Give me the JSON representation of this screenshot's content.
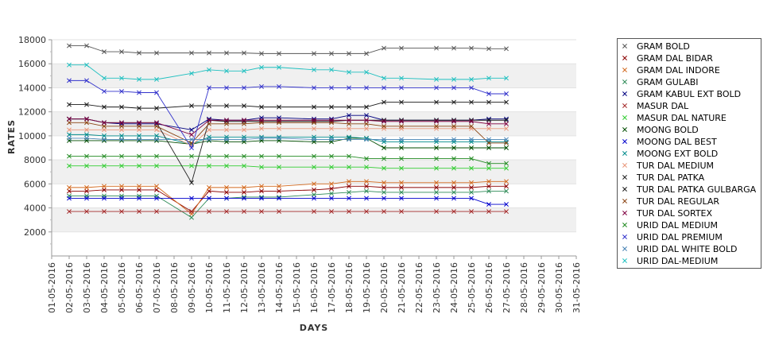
{
  "chart_data": {
    "type": "line",
    "title": "",
    "xlabel": "DAYS",
    "ylabel": "RATES",
    "ylim": [
      0,
      18000
    ],
    "yticks": [
      2000,
      4000,
      6000,
      8000,
      10000,
      12000,
      14000,
      16000,
      18000
    ],
    "grid": true,
    "legend_position": "right",
    "categories": [
      "01-05-2016",
      "02-05-2016",
      "03-05-2016",
      "04-05-2016",
      "05-05-2016",
      "06-05-2016",
      "07-05-2016",
      "08-05-2016",
      "09-05-2016",
      "10-05-2016",
      "11-05-2016",
      "12-05-2016",
      "13-05-2016",
      "14-05-2016",
      "15-05-2016",
      "16-05-2016",
      "17-05-2016",
      "18-05-2016",
      "19-05-2016",
      "20-05-2016",
      "21-05-2016",
      "22-05-2016",
      "23-05-2016",
      "24-05-2016",
      "25-05-2016",
      "26-05-2016",
      "27-05-2016",
      "28-05-2016",
      "29-05-2016",
      "30-05-2016",
      "31-05-2016"
    ],
    "series": [
      {
        "name": "GRAM BOLD",
        "color": "#555555",
        "values": [
          null,
          17500,
          17500,
          17000,
          17000,
          16900,
          16900,
          null,
          16900,
          16900,
          16900,
          16900,
          16850,
          16850,
          null,
          16850,
          16850,
          16850,
          16850,
          17300,
          17300,
          null,
          17300,
          17300,
          17300,
          17250,
          17250,
          null,
          null,
          null,
          null
        ]
      },
      {
        "name": "GRAM DAL BIDAR",
        "color": "#8b0000",
        "values": [
          null,
          5400,
          5400,
          5500,
          5500,
          5500,
          5500,
          null,
          3700,
          5400,
          5300,
          5300,
          5400,
          5400,
          null,
          5500,
          5600,
          5800,
          5800,
          5700,
          5700,
          null,
          5700,
          5700,
          5700,
          5800,
          5800,
          null,
          null,
          null,
          null
        ]
      },
      {
        "name": "GRAM DAL INDORE",
        "color": "#d2691e",
        "values": [
          null,
          5700,
          5700,
          5800,
          5800,
          5800,
          5800,
          null,
          3500,
          5700,
          5700,
          5700,
          5800,
          5800,
          null,
          6000,
          6000,
          6200,
          6200,
          6100,
          6100,
          null,
          6100,
          6100,
          6100,
          6200,
          6200,
          null,
          null,
          null,
          null
        ]
      },
      {
        "name": "GRAM GULABI",
        "color": "#2e8b57",
        "values": [
          null,
          5000,
          5000,
          5000,
          5000,
          5000,
          5000,
          null,
          3200,
          4800,
          4800,
          4900,
          4900,
          4900,
          null,
          5100,
          5200,
          5300,
          5400,
          5300,
          5300,
          null,
          5300,
          5300,
          5300,
          5400,
          5400,
          null,
          null,
          null,
          null
        ]
      },
      {
        "name": "GRAM KABUL EXT BOLD",
        "color": "#000080",
        "values": [
          null,
          11400,
          11400,
          11100,
          11000,
          11000,
          11000,
          null,
          10500,
          11400,
          11300,
          11300,
          11500,
          11500,
          null,
          11400,
          11400,
          11700,
          11700,
          11300,
          11300,
          null,
          11300,
          11300,
          11300,
          11400,
          11400,
          null,
          null,
          null,
          null
        ]
      },
      {
        "name": "MASUR DAL",
        "color": "#a52a2a",
        "values": [
          null,
          3700,
          3700,
          3700,
          3700,
          3700,
          3700,
          null,
          3700,
          3700,
          3700,
          3700,
          3700,
          3700,
          null,
          3700,
          3700,
          3700,
          3700,
          3700,
          3700,
          null,
          3700,
          3700,
          3700,
          3700,
          3700,
          null,
          null,
          null,
          null
        ]
      },
      {
        "name": "MASUR DAL NATURE",
        "color": "#32cd32",
        "values": [
          null,
          7500,
          7500,
          7500,
          7500,
          7500,
          7500,
          null,
          7500,
          7500,
          7500,
          7500,
          7400,
          7400,
          null,
          7400,
          7400,
          7400,
          7400,
          7300,
          7300,
          null,
          7300,
          7300,
          7300,
          7300,
          7300,
          null,
          null,
          null,
          null
        ]
      },
      {
        "name": "MOONG BOLD",
        "color": "#004d00",
        "values": [
          null,
          9600,
          9600,
          9600,
          9600,
          9600,
          9600,
          null,
          9300,
          9600,
          9500,
          9500,
          9600,
          9600,
          null,
          9500,
          9500,
          9800,
          9800,
          9000,
          9000,
          null,
          9000,
          9000,
          9000,
          9000,
          9000,
          null,
          null,
          null,
          null
        ]
      },
      {
        "name": "MOONG DAL BEST",
        "color": "#0000cd",
        "values": [
          null,
          4800,
          4800,
          4800,
          4800,
          4800,
          4800,
          null,
          4800,
          4800,
          4800,
          4800,
          4800,
          4800,
          null,
          4800,
          4800,
          4800,
          4800,
          4800,
          4800,
          null,
          4800,
          4800,
          4800,
          4300,
          4300,
          null,
          null,
          null,
          null
        ]
      },
      {
        "name": "MOONG EXT BOLD",
        "color": "#008b8b",
        "values": [
          null,
          10100,
          10100,
          10000,
          10000,
          10000,
          10000,
          null,
          9300,
          9900,
          9900,
          9900,
          9900,
          9900,
          null,
          9900,
          9900,
          9900,
          9800,
          9500,
          9500,
          null,
          9500,
          9500,
          9500,
          9500,
          9500,
          null,
          null,
          null,
          null
        ]
      },
      {
        "name": "TUR DAL MEDIUM",
        "color": "#e9967a",
        "values": [
          null,
          10500,
          10500,
          10500,
          10500,
          10500,
          10500,
          null,
          9200,
          10500,
          10500,
          10500,
          10600,
          10600,
          null,
          10600,
          10600,
          10600,
          10600,
          10600,
          10600,
          null,
          10600,
          10600,
          10600,
          10600,
          10600,
          null,
          null,
          null,
          null
        ]
      },
      {
        "name": "TUR DAL PATKA",
        "color": "#202020",
        "values": [
          null,
          11400,
          11400,
          11100,
          11100,
          11100,
          11100,
          null,
          6100,
          11300,
          11200,
          11200,
          11200,
          11200,
          null,
          11200,
          11200,
          11300,
          11300,
          11300,
          11300,
          null,
          11300,
          11300,
          11300,
          11300,
          11300,
          null,
          null,
          null,
          null
        ]
      },
      {
        "name": "TUR DAL PATKA GULBARGA",
        "color": "#1a1a1a",
        "values": [
          null,
          12600,
          12600,
          12400,
          12400,
          12300,
          12300,
          null,
          12500,
          12500,
          12500,
          12500,
          12400,
          12400,
          null,
          12400,
          12400,
          12400,
          12400,
          12800,
          12800,
          null,
          12800,
          12800,
          12800,
          12800,
          12800,
          null,
          null,
          null,
          null
        ]
      },
      {
        "name": "TUR DAL REGULAR",
        "color": "#8b4513",
        "values": [
          null,
          11100,
          11100,
          10800,
          10800,
          10800,
          10800,
          null,
          9400,
          11000,
          11000,
          11000,
          11100,
          11100,
          null,
          11100,
          11100,
          11000,
          11000,
          10800,
          10800,
          null,
          10800,
          10800,
          10800,
          9400,
          9400,
          null,
          null,
          null,
          null
        ]
      },
      {
        "name": "TUR DAL SORTEX",
        "color": "#800040",
        "values": [
          null,
          11400,
          11400,
          11100,
          11100,
          11100,
          11100,
          null,
          10100,
          11300,
          11300,
          11300,
          11300,
          11300,
          null,
          11300,
          11300,
          11300,
          11300,
          11200,
          11200,
          null,
          11200,
          11200,
          11200,
          11000,
          11000,
          null,
          null,
          null,
          null
        ]
      },
      {
        "name": "URID DAL MEDIUM",
        "color": "#228b22",
        "values": [
          null,
          8300,
          8300,
          8300,
          8300,
          8300,
          8300,
          null,
          8300,
          8300,
          8300,
          8300,
          8300,
          8300,
          null,
          8300,
          8300,
          8300,
          8100,
          8100,
          8100,
          null,
          8100,
          8100,
          8100,
          7700,
          7700,
          null,
          null,
          null,
          null
        ]
      },
      {
        "name": "URID DAL PREMIUM",
        "color": "#3333cc",
        "values": [
          null,
          14600,
          14600,
          13700,
          13700,
          13600,
          13600,
          null,
          9000,
          14000,
          14000,
          14000,
          14100,
          14100,
          null,
          14000,
          14000,
          14000,
          14000,
          14000,
          14000,
          null,
          14000,
          14000,
          14000,
          13500,
          13500,
          null,
          null,
          null,
          null
        ]
      },
      {
        "name": "URID DAL WHITE BOLD",
        "color": "#4682b4",
        "values": [
          null,
          9800,
          9800,
          9700,
          9700,
          9700,
          9700,
          null,
          9700,
          9700,
          9700,
          9700,
          9800,
          9800,
          null,
          9700,
          9700,
          9700,
          9700,
          9700,
          9700,
          null,
          9700,
          9700,
          9700,
          9700,
          9700,
          null,
          null,
          null,
          null
        ]
      },
      {
        "name": "URID DAL-MEDIUM",
        "color": "#20c0c0",
        "values": [
          null,
          15900,
          15900,
          14800,
          14800,
          14700,
          14700,
          null,
          15200,
          15500,
          15400,
          15400,
          15700,
          15700,
          null,
          15500,
          15500,
          15300,
          15300,
          14800,
          14800,
          null,
          14700,
          14700,
          14700,
          14800,
          14800,
          null,
          null,
          null,
          null
        ]
      }
    ]
  }
}
